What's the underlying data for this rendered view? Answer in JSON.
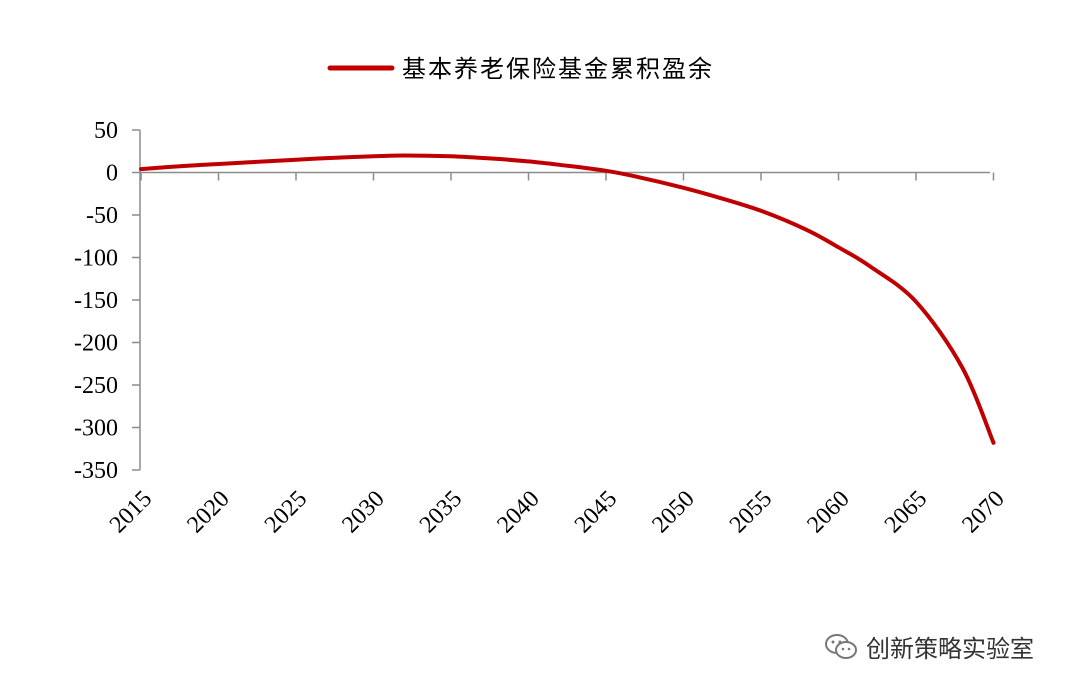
{
  "chart_data": {
    "type": "line",
    "legend": {
      "position": "top-center",
      "entries": [
        "基本养老保险基金累积盈余"
      ]
    },
    "series": [
      {
        "name": "基本养老保险基金累积盈余",
        "color": "#c00000",
        "x": [
          2015,
          2018,
          2020,
          2022,
          2025,
          2027,
          2030,
          2032,
          2035,
          2038,
          2040,
          2042,
          2045,
          2047,
          2050,
          2052,
          2055,
          2058,
          2060,
          2062,
          2065,
          2068,
          2070
        ],
        "y": [
          4,
          8,
          10,
          12,
          15,
          17,
          19,
          20,
          19,
          16,
          13,
          9,
          2,
          -5,
          -18,
          -28,
          -45,
          -68,
          -88,
          -110,
          -152,
          -230,
          -318
        ]
      }
    ],
    "x_ticks": [
      "2015",
      "2020",
      "2025",
      "2030",
      "2035",
      "2040",
      "2045",
      "2050",
      "2055",
      "2060",
      "2065",
      "2070"
    ],
    "y_ticks": [
      "50",
      "0",
      "-50",
      "-100",
      "-150",
      "-200",
      "-250",
      "-300",
      "-350"
    ],
    "xlim": [
      2015,
      2071
    ],
    "ylim": [
      -350,
      50
    ],
    "grid": false,
    "title": "",
    "xlabel": "",
    "ylabel": ""
  },
  "watermark": {
    "text": "创新策略实验室",
    "icon": "wechat-icon"
  }
}
